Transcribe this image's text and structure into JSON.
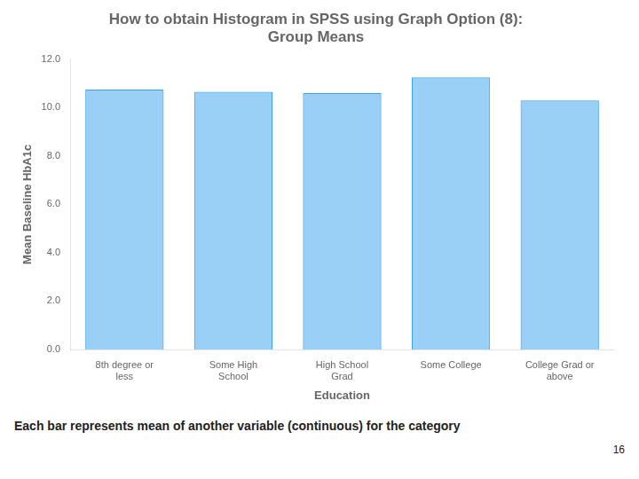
{
  "chart_data": {
    "type": "bar",
    "title": "How to obtain Histogram in SPSS using Graph Option (8):\nGroup Means",
    "categories": [
      "8th degree or\nless",
      "Some High\nSchool",
      "High School\nGrad",
      "Some College",
      "College Grad or\nabove"
    ],
    "values": [
      10.75,
      10.65,
      10.6,
      11.25,
      10.3
    ],
    "xlabel": "Education",
    "ylabel": "Mean Baseline HbA1c",
    "ylim": [
      0,
      12.0
    ],
    "yticks": [
      {
        "value": 0.0,
        "label": "0.0"
      },
      {
        "value": 2.0,
        "label": "2.0"
      },
      {
        "value": 4.0,
        "label": "4.0"
      },
      {
        "value": 6.0,
        "label": "6.0"
      },
      {
        "value": 8.0,
        "label": "8.0"
      },
      {
        "value": 10.0,
        "label": "10.0"
      },
      {
        "value": 12.0,
        "label": "12.0"
      }
    ],
    "grid": false,
    "annotations": [
      "Each bar represents mean of another variable (continuous) for the category",
      "16"
    ]
  }
}
